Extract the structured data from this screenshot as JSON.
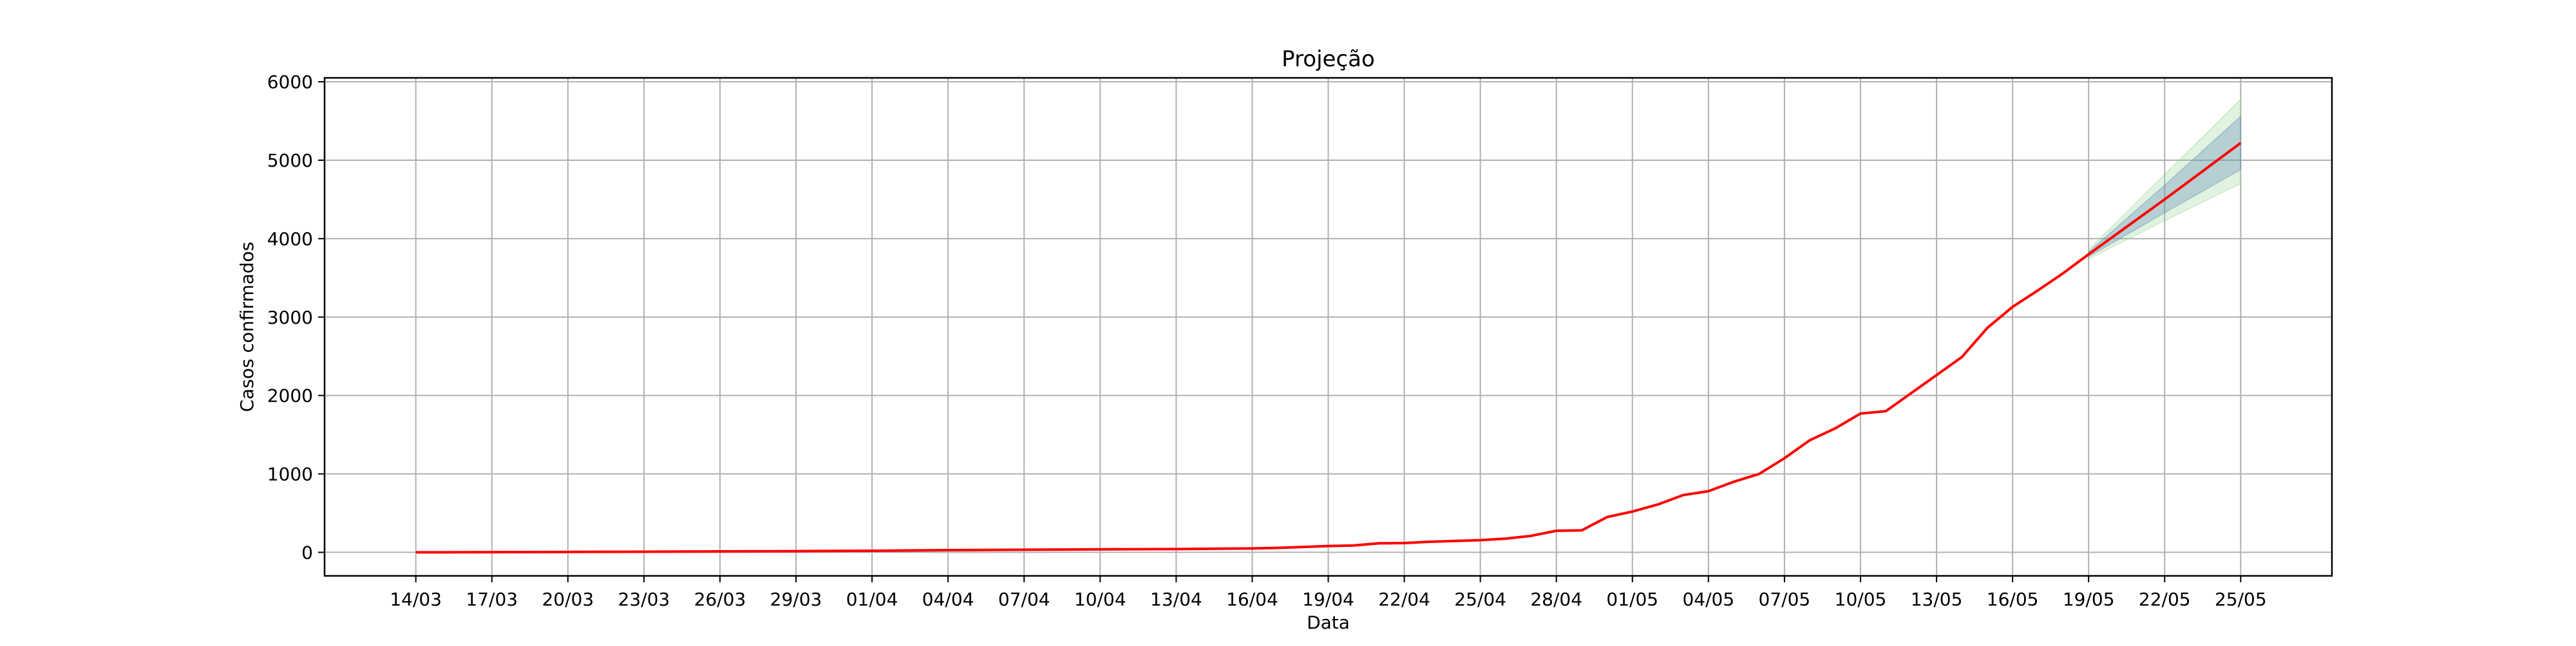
{
  "chart_data": {
    "type": "line",
    "title": "Projeção",
    "xlabel": "Data",
    "ylabel": "Casos confirmados",
    "x_ticks": [
      "14/03",
      "17/03",
      "20/03",
      "23/03",
      "26/03",
      "29/03",
      "01/04",
      "04/04",
      "07/04",
      "10/04",
      "13/04",
      "16/04",
      "19/04",
      "22/04",
      "25/04",
      "28/04",
      "01/05",
      "04/05",
      "07/05",
      "10/05",
      "13/05",
      "16/05",
      "19/05",
      "22/05",
      "25/05"
    ],
    "y_ticks": [
      0,
      1000,
      2000,
      3000,
      4000,
      5000,
      6000
    ],
    "ylim": [
      -300,
      6050
    ],
    "grid": true,
    "colors": {
      "line": "#ff0000",
      "band_inner": "#4a78b4",
      "band_outer": "#8fd18f",
      "grid": "#b0b0b0"
    },
    "series": [
      {
        "values": [
          {
            "x": "14/03",
            "y": 0
          },
          {
            "x": "15/03",
            "y": 0
          },
          {
            "x": "16/03",
            "y": 2
          },
          {
            "x": "17/03",
            "y": 3
          },
          {
            "x": "20/03",
            "y": 5
          },
          {
            "x": "23/03",
            "y": 8
          },
          {
            "x": "26/03",
            "y": 12
          },
          {
            "x": "29/03",
            "y": 15
          },
          {
            "x": "01/04",
            "y": 20
          },
          {
            "x": "04/04",
            "y": 28
          },
          {
            "x": "07/04",
            "y": 33
          },
          {
            "x": "10/04",
            "y": 38
          },
          {
            "x": "13/04",
            "y": 42
          },
          {
            "x": "16/04",
            "y": 50
          },
          {
            "x": "17/04",
            "y": 57
          },
          {
            "x": "19/04",
            "y": 80
          },
          {
            "x": "20/04",
            "y": 88
          },
          {
            "x": "21/04",
            "y": 115
          },
          {
            "x": "22/04",
            "y": 118
          },
          {
            "x": "23/04",
            "y": 135
          },
          {
            "x": "25/04",
            "y": 155
          },
          {
            "x": "26/04",
            "y": 175
          },
          {
            "x": "27/04",
            "y": 210
          },
          {
            "x": "28/04",
            "y": 275
          },
          {
            "x": "29/04",
            "y": 280
          },
          {
            "x": "30/04",
            "y": 450
          },
          {
            "x": "01/05",
            "y": 520
          },
          {
            "x": "02/05",
            "y": 610
          },
          {
            "x": "03/05",
            "y": 730
          },
          {
            "x": "04/05",
            "y": 780
          },
          {
            "x": "05/05",
            "y": 900
          },
          {
            "x": "06/05",
            "y": 1000
          },
          {
            "x": "07/05",
            "y": 1200
          },
          {
            "x": "08/05",
            "y": 1430
          },
          {
            "x": "09/05",
            "y": 1580
          },
          {
            "x": "10/05",
            "y": 1770
          },
          {
            "x": "11/05",
            "y": 1800
          },
          {
            "x": "12/05",
            "y": 2030
          },
          {
            "x": "13/05",
            "y": 2260
          },
          {
            "x": "14/05",
            "y": 2490
          },
          {
            "x": "15/05",
            "y": 2860
          },
          {
            "x": "16/05",
            "y": 3130
          },
          {
            "x": "17/05",
            "y": 3340
          },
          {
            "x": "18/05",
            "y": 3560
          },
          {
            "x": "19/05",
            "y": 3800
          },
          {
            "x": "22/05",
            "y": 4500
          },
          {
            "x": "25/05",
            "y": 5220
          }
        ]
      }
    ],
    "bands": [
      {
        "kind": "outer",
        "lower": [
          {
            "x": "19/05",
            "y": 3740
          },
          {
            "x": "22/05",
            "y": 4230
          },
          {
            "x": "25/05",
            "y": 4700
          }
        ],
        "upper": [
          {
            "x": "19/05",
            "y": 3860
          },
          {
            "x": "22/05",
            "y": 4820
          },
          {
            "x": "25/05",
            "y": 5780
          }
        ]
      },
      {
        "kind": "inner",
        "lower": [
          {
            "x": "19/05",
            "y": 3770
          },
          {
            "x": "22/05",
            "y": 4330
          },
          {
            "x": "25/05",
            "y": 4880
          }
        ],
        "upper": [
          {
            "x": "19/05",
            "y": 3830
          },
          {
            "x": "22/05",
            "y": 4680
          },
          {
            "x": "25/05",
            "y": 5560
          }
        ]
      }
    ]
  }
}
